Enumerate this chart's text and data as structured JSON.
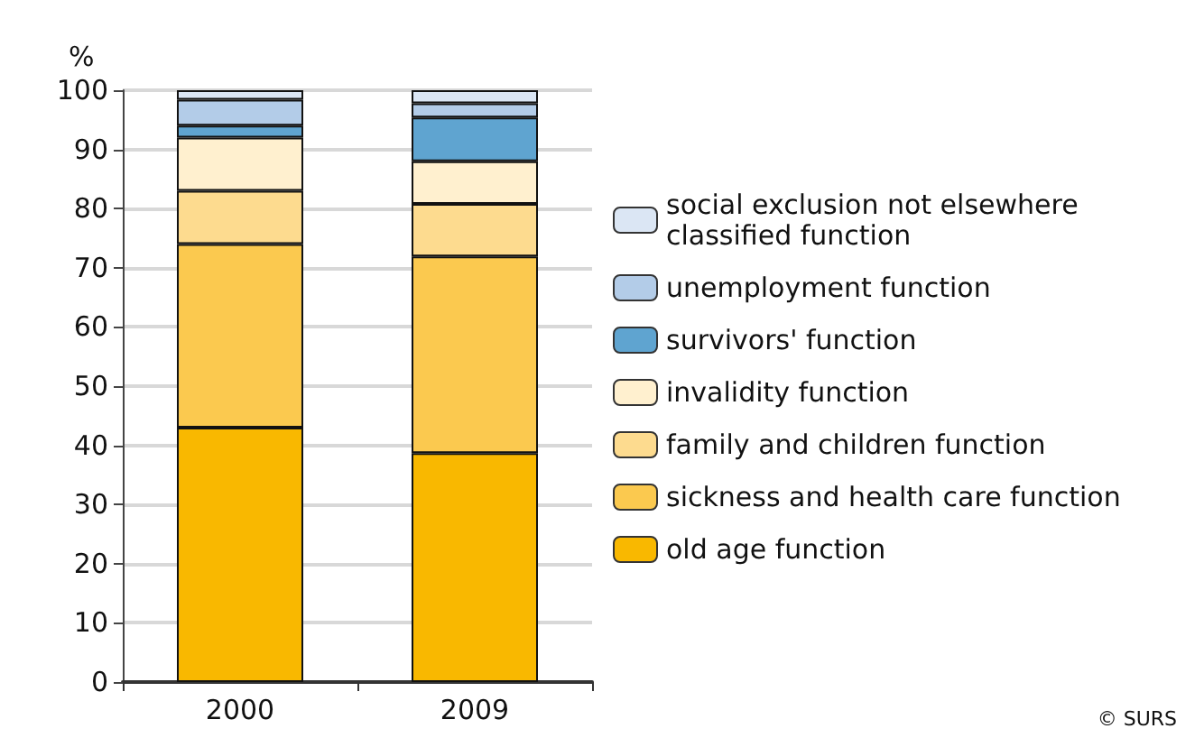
{
  "chart_data": {
    "type": "bar",
    "stacked": true,
    "ylabel": "%",
    "categories": [
      "2000",
      "2009"
    ],
    "series": [
      {
        "name": "old age function",
        "color": "#f9b800",
        "values": [
          43,
          38.7
        ]
      },
      {
        "name": "sickness and health care function",
        "color": "#fbc94f",
        "values": [
          31,
          33.2
        ]
      },
      {
        "name": "family and children function",
        "color": "#fddb8f",
        "values": [
          9,
          8.9
        ]
      },
      {
        "name": "invalidity function",
        "color": "#fff0cf",
        "values": [
          9,
          7.2
        ]
      },
      {
        "name": "survivors' function",
        "color": "#5fa4d0",
        "values": [
          2,
          7.4
        ]
      },
      {
        "name": "unemployment function",
        "color": "#b3cce8",
        "values": [
          4.4,
          2.4
        ]
      },
      {
        "name": "social exclusion not elsewhere classified function",
        "color": "#dbe6f4",
        "values": [
          1.6,
          2.2
        ]
      }
    ],
    "ylim": [
      0,
      100
    ],
    "yticks": [
      0,
      10,
      20,
      30,
      40,
      50,
      60,
      70,
      80,
      90,
      100
    ],
    "grid": "y",
    "legend": "right",
    "annotations": [
      "© SURS"
    ]
  }
}
